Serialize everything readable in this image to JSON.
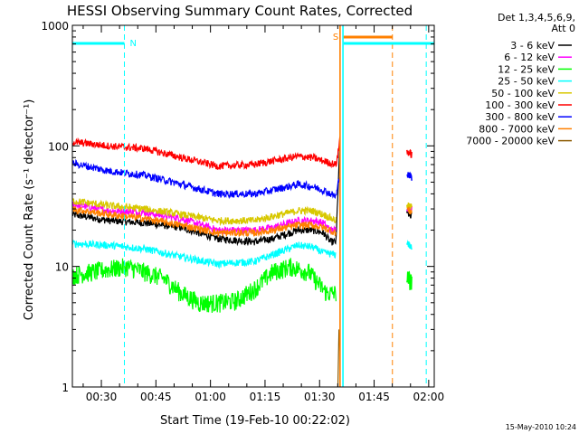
{
  "chart_data": {
    "type": "line",
    "title": "HESSI Observing Summary Count Rates, Corrected",
    "xlabel": "Start Time (19-Feb-10 00:22:02)",
    "ylabel": "Corrected Count Rate (s⁻¹ detector⁻¹)",
    "xlim_minutes": [
      0,
      99.5
    ],
    "ylim": [
      1,
      1000
    ],
    "yscale": "log",
    "x_ticks": [
      {
        "label": "00:30",
        "t": 7.97
      },
      {
        "label": "00:45",
        "t": 22.97
      },
      {
        "label": "01:00",
        "t": 37.97
      },
      {
        "label": "01:15",
        "t": 52.97
      },
      {
        "label": "01:30",
        "t": 67.97
      },
      {
        "label": "01:45",
        "t": 82.97
      },
      {
        "label": "02:00",
        "t": 97.97
      }
    ],
    "y_ticks": [
      {
        "label": "1",
        "v": 1
      },
      {
        "label": "10",
        "v": 10
      },
      {
        "label": "100",
        "v": 100
      },
      {
        "label": "1000",
        "v": 1000
      }
    ],
    "legend_title": [
      "Det 1,3,4,5,6,9,",
      "Att 0"
    ],
    "legend_position": "right",
    "series": [
      {
        "name": "3 - 6 keV",
        "color": "#000000",
        "points": [
          [
            0,
            27
          ],
          [
            10,
            24
          ],
          [
            20,
            23
          ],
          [
            30,
            21
          ],
          [
            40,
            17
          ],
          [
            50,
            16
          ],
          [
            55,
            17
          ],
          [
            62,
            20
          ],
          [
            66,
            20
          ],
          [
            69,
            19
          ],
          [
            71,
            16
          ],
          [
            72.5,
            16
          ],
          [
            73,
            40
          ],
          [
            73.6,
            110
          ]
        ],
        "tail": [
          [
            92,
            28
          ],
          [
            93.3,
            26
          ]
        ]
      },
      {
        "name": "6 - 12 keV",
        "color": "#ff00ff",
        "points": [
          [
            0,
            33
          ],
          [
            10,
            29
          ],
          [
            20,
            28
          ],
          [
            30,
            25
          ],
          [
            40,
            20
          ],
          [
            50,
            20
          ],
          [
            55,
            21
          ],
          [
            62,
            24
          ],
          [
            66,
            24
          ],
          [
            69,
            23
          ],
          [
            71,
            20
          ],
          [
            72.5,
            20
          ]
        ],
        "tail": [
          [
            92,
            31
          ],
          [
            93.3,
            30
          ]
        ]
      },
      {
        "name": "12 - 25 keV",
        "color": "#00ff00",
        "points": [
          [
            0,
            8.5
          ],
          [
            10,
            9.5
          ],
          [
            15,
            10
          ],
          [
            20,
            9
          ],
          [
            25,
            8
          ],
          [
            30,
            6
          ],
          [
            35,
            5
          ],
          [
            40,
            5
          ],
          [
            45,
            5.2
          ],
          [
            50,
            6.5
          ],
          [
            55,
            9
          ],
          [
            60,
            10
          ],
          [
            65,
            9
          ],
          [
            68,
            7
          ],
          [
            70,
            6
          ],
          [
            72.5,
            6
          ]
        ],
        "tail": [
          [
            92,
            8
          ],
          [
            93.3,
            7.5
          ]
        ]
      },
      {
        "name": "25 - 50 keV",
        "color": "#00ffff",
        "points": [
          [
            0,
            15.5
          ],
          [
            10,
            15
          ],
          [
            20,
            14
          ],
          [
            30,
            12
          ],
          [
            40,
            10.5
          ],
          [
            50,
            11
          ],
          [
            55,
            12.5
          ],
          [
            62,
            15
          ],
          [
            66,
            14.5
          ],
          [
            69,
            13
          ],
          [
            72.5,
            12.5
          ]
        ],
        "tail": [
          [
            92,
            16
          ],
          [
            93.3,
            14
          ]
        ]
      },
      {
        "name": "50 - 100 keV",
        "color": "#d8c800",
        "points": [
          [
            0,
            35
          ],
          [
            10,
            32
          ],
          [
            20,
            30
          ],
          [
            30,
            27
          ],
          [
            40,
            24
          ],
          [
            50,
            24
          ],
          [
            55,
            26
          ],
          [
            62,
            29
          ],
          [
            66,
            29
          ],
          [
            69,
            27
          ],
          [
            72.5,
            24
          ]
        ],
        "tail": [
          [
            92,
            32
          ],
          [
            93.3,
            31
          ]
        ]
      },
      {
        "name": "100 - 300 keV",
        "color": "#ff0000",
        "points": [
          [
            0,
            108
          ],
          [
            10,
            100
          ],
          [
            20,
            95
          ],
          [
            30,
            80
          ],
          [
            40,
            68
          ],
          [
            50,
            70
          ],
          [
            55,
            75
          ],
          [
            62,
            82
          ],
          [
            66,
            80
          ],
          [
            69,
            75
          ],
          [
            72.5,
            70
          ],
          [
            73,
            85
          ],
          [
            73.6,
            120
          ]
        ],
        "tail": [
          [
            92,
            90
          ],
          [
            93.3,
            85
          ]
        ]
      },
      {
        "name": "300 - 800 keV",
        "color": "#0000ff",
        "points": [
          [
            0,
            72
          ],
          [
            10,
            62
          ],
          [
            20,
            57
          ],
          [
            30,
            48
          ],
          [
            40,
            40
          ],
          [
            50,
            40
          ],
          [
            55,
            43
          ],
          [
            62,
            48
          ],
          [
            66,
            46
          ],
          [
            69,
            43
          ],
          [
            72.5,
            38
          ],
          [
            73.6,
            60
          ]
        ],
        "tail": [
          [
            92,
            58
          ],
          [
            93.3,
            55
          ]
        ]
      },
      {
        "name": "800 - 7000 keV",
        "color": "#ff8000",
        "points": [
          [
            0,
            30
          ],
          [
            10,
            27
          ],
          [
            20,
            25
          ],
          [
            30,
            22
          ],
          [
            40,
            19
          ],
          [
            50,
            19
          ],
          [
            55,
            20
          ],
          [
            62,
            22
          ],
          [
            66,
            22
          ],
          [
            69,
            21
          ],
          [
            72.5,
            19
          ]
        ],
        "tail": [
          [
            92,
            30
          ],
          [
            93.3,
            28
          ]
        ]
      },
      {
        "name": "7000 - 20000 keV",
        "color": "#8b5a00",
        "points": [
          [
            73,
            1
          ],
          [
            73.3,
            3
          ],
          [
            73.6,
            2
          ]
        ],
        "tail": []
      }
    ],
    "flags": [
      {
        "label": "N",
        "color": "#00ffff",
        "start": 0,
        "end": 14.3
      },
      {
        "label": "",
        "color": "#00ffff",
        "start": 74.6,
        "end": 99.5
      },
      {
        "label": "S",
        "color": "#ff8000",
        "start": 74.6,
        "end": 88.0
      }
    ],
    "vlines": [
      {
        "t": 14.3,
        "color": "#00ffff",
        "dash": true
      },
      {
        "t": 74.4,
        "color": "#00ffff",
        "dash": false
      },
      {
        "t": 73.6,
        "color": "#ff8000",
        "dash": false
      },
      {
        "t": 88.0,
        "color": "#ff8000",
        "dash": true
      },
      {
        "t": 97.3,
        "color": "#00ffff",
        "dash": true
      }
    ],
    "timestamp": "15-May-2010 10:24"
  }
}
